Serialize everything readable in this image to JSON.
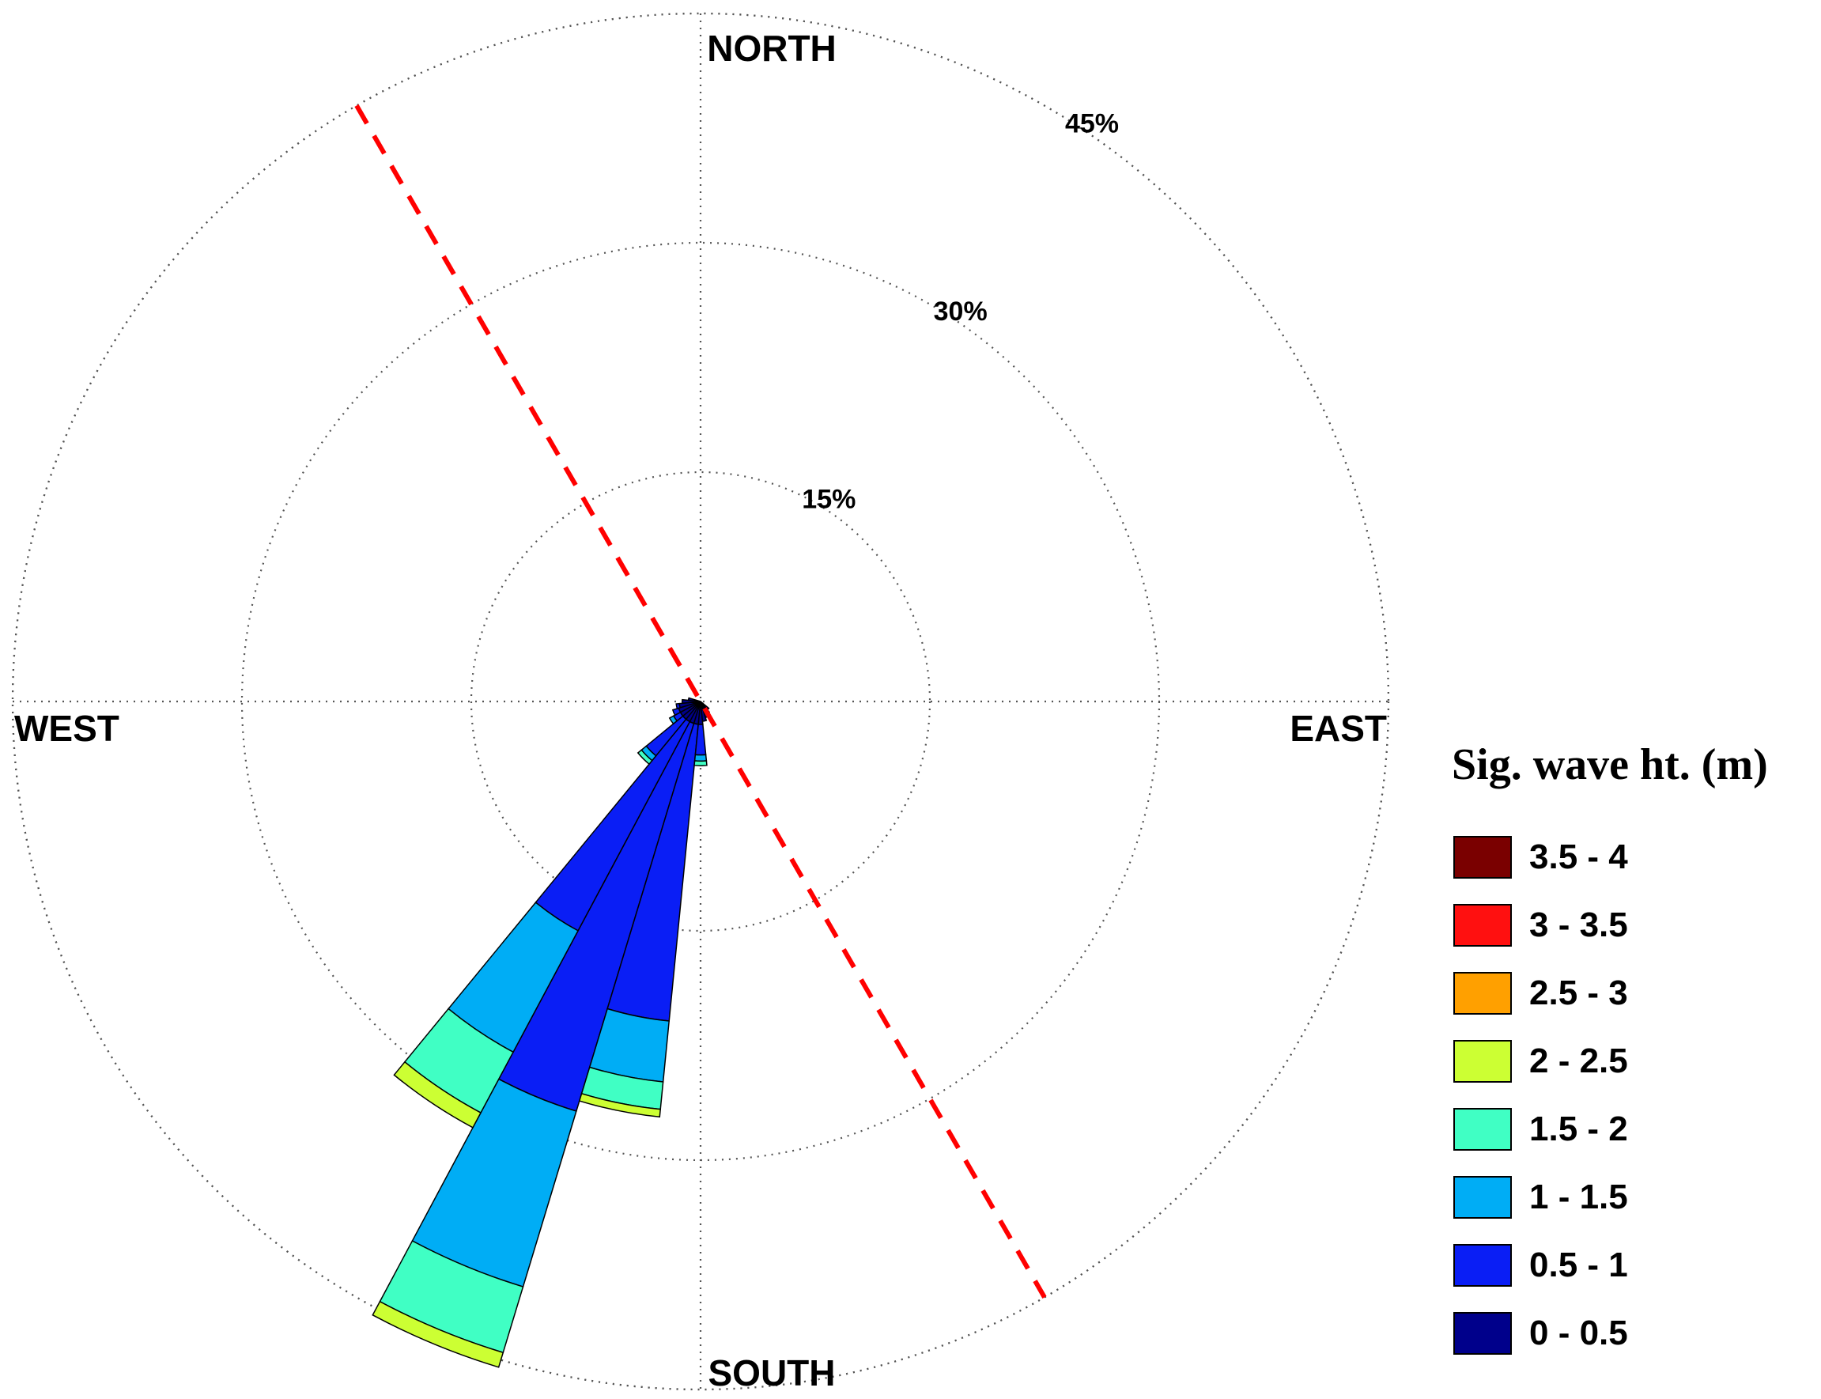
{
  "chart_data": {
    "type": "wave-rose",
    "direction_labels": {
      "north": "NORTH",
      "south": "SOUTH",
      "east": "EAST",
      "west": "WEST"
    },
    "ring_labels": [
      "15%",
      "30%",
      "45%"
    ],
    "ring_values": [
      15,
      30,
      45
    ],
    "r_max": 45,
    "legend_title": "Sig. wave ht. (m)",
    "bins": [
      {
        "label": "0 - 0.5",
        "color": "#00008b"
      },
      {
        "label": "0.5 - 1",
        "color": "#0a1ef5"
      },
      {
        "label": "1 - 1.5",
        "color": "#00adf5"
      },
      {
        "label": "1.5 - 2",
        "color": "#40ffc4"
      },
      {
        "label": "2 - 2.5",
        "color": "#ccff33"
      },
      {
        "label": "2.5 - 3",
        "color": "#ffa000"
      },
      {
        "label": "3 - 3.5",
        "color": "#ff1010"
      },
      {
        "label": "3.5 - 4",
        "color": "#7a0000"
      }
    ],
    "sectors": [
      {
        "direction_deg": 202.5,
        "cumulative": [
          1.5,
          28.0,
          40.0,
          44.5,
          45.5
        ]
      },
      {
        "direction_deg": 213.75,
        "cumulative": [
          1.5,
          17.0,
          26.0,
          30.5,
          31.6
        ]
      },
      {
        "direction_deg": 191.25,
        "cumulative": [
          1.5,
          21.0,
          25.0,
          26.8,
          27.3
        ]
      },
      {
        "direction_deg": 225.0,
        "cumulative": [
          1.5,
          4.6,
          5.0,
          5.3
        ]
      },
      {
        "direction_deg": 180.0,
        "cumulative": [
          1.5,
          3.5,
          3.9,
          4.2
        ]
      },
      {
        "direction_deg": 236.25,
        "cumulative": [
          1.5,
          2.0,
          2.3
        ]
      },
      {
        "direction_deg": 247.5,
        "cumulative": [
          1.5,
          1.9
        ]
      },
      {
        "direction_deg": 258.75,
        "cumulative": [
          1.4,
          1.6
        ]
      },
      {
        "direction_deg": 270.0,
        "cumulative": [
          1.2
        ]
      },
      {
        "direction_deg": 168.75,
        "cumulative": [
          1.3
        ]
      },
      {
        "direction_deg": 157.5,
        "cumulative": [
          1.1
        ]
      },
      {
        "direction_deg": 146.25,
        "cumulative": [
          0.9
        ]
      },
      {
        "direction_deg": 281.25,
        "cumulative": [
          0.8
        ]
      },
      {
        "direction_deg": 135.0,
        "cumulative": [
          0.7
        ]
      }
    ],
    "shoreline_bearing_deg": 330,
    "grid": true
  }
}
